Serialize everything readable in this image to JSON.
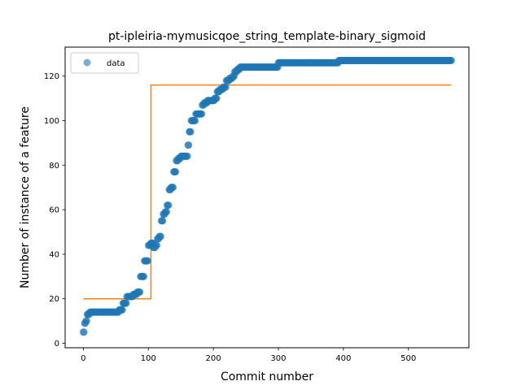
{
  "chart_data": {
    "type": "scatter",
    "title": "pt-ipleiria-mymusicqoe_string_template-binary_sigmoid",
    "xlabel": "Commit number",
    "ylabel": "Number of instance of a feature",
    "xlim": [
      -28,
      593
    ],
    "ylim": [
      -2,
      133
    ],
    "xticks": [
      0,
      100,
      200,
      300,
      400,
      500
    ],
    "yticks": [
      0,
      20,
      40,
      60,
      80,
      100,
      120
    ],
    "grid": false,
    "legend": {
      "position": "top-left",
      "entries": [
        "data"
      ]
    },
    "colors": {
      "data": "#1f77b4",
      "fit": "#ff7f0e"
    },
    "series": [
      {
        "name": "data",
        "kind": "scatter",
        "segments": [
          [
            0,
            1,
            5
          ],
          [
            2,
            3,
            9
          ],
          [
            4,
            5,
            10
          ],
          [
            6,
            9,
            13
          ],
          [
            10,
            54,
            14
          ],
          [
            55,
            60,
            15
          ],
          [
            61,
            66,
            18
          ],
          [
            67,
            76,
            21
          ],
          [
            77,
            82,
            22
          ],
          [
            83,
            87,
            23
          ],
          [
            88,
            93,
            30
          ],
          [
            94,
            99,
            37
          ],
          [
            100,
            103,
            44
          ],
          [
            104,
            107,
            45
          ],
          [
            108,
            110,
            43
          ],
          [
            111,
            113,
            44
          ],
          [
            114,
            116,
            47
          ],
          [
            117,
            119,
            48
          ],
          [
            120,
            122,
            55
          ],
          [
            123,
            125,
            58
          ],
          [
            126,
            128,
            59
          ],
          [
            129,
            131,
            62
          ],
          [
            132,
            134,
            69
          ],
          [
            135,
            138,
            70
          ],
          [
            139,
            142,
            77
          ],
          [
            143,
            145,
            82
          ],
          [
            146,
            149,
            83
          ],
          [
            150,
            160,
            84
          ],
          [
            161,
            162,
            89
          ],
          [
            163,
            165,
            95
          ],
          [
            166,
            172,
            100
          ],
          [
            173,
            182,
            103
          ],
          [
            183,
            185,
            107
          ],
          [
            186,
            190,
            108
          ],
          [
            191,
            201,
            109
          ],
          [
            202,
            205,
            110
          ],
          [
            206,
            209,
            113
          ],
          [
            210,
            214,
            114
          ],
          [
            215,
            219,
            115
          ],
          [
            220,
            224,
            118
          ],
          [
            225,
            229,
            119
          ],
          [
            230,
            232,
            120
          ],
          [
            233,
            236,
            122
          ],
          [
            237,
            240,
            123
          ],
          [
            241,
            299,
            124
          ],
          [
            300,
            392,
            126
          ],
          [
            393,
            566,
            127
          ]
        ]
      },
      {
        "name": "",
        "kind": "line",
        "x": [
          0,
          104,
          104,
          566
        ],
        "y": [
          20,
          20,
          116,
          116
        ]
      }
    ]
  }
}
